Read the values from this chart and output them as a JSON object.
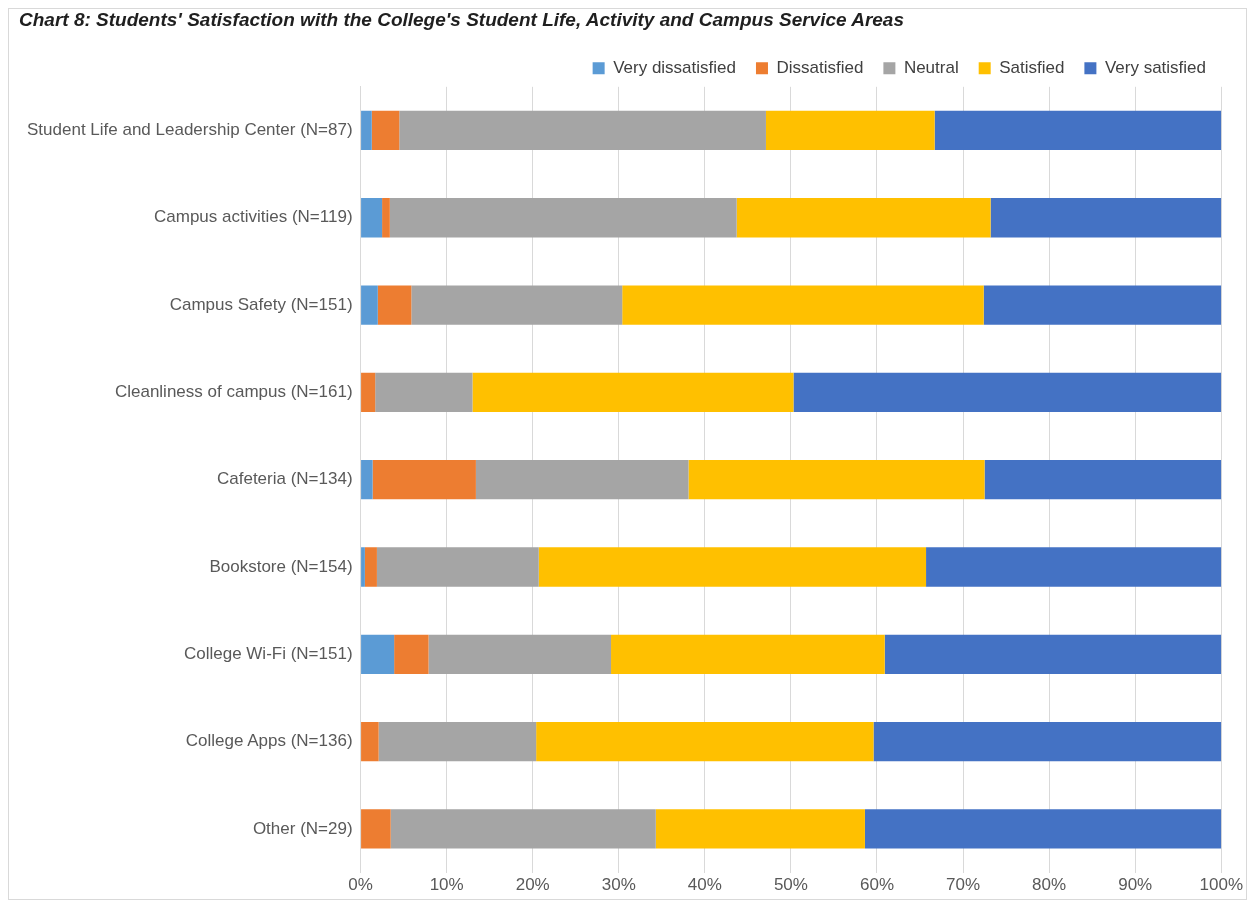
{
  "chart_data": {
    "type": "bar",
    "orientation": "horizontal",
    "stacked": true,
    "title": "Chart 8: Students' Satisfaction with the College's Student Life, Activity and Campus Service Areas",
    "categories": [
      "Student Life and Leadership Center (N=87)",
      "Campus activities (N=119)",
      "Campus Safety (N=151)",
      "Cleanliness of campus (N=161)",
      "Cafeteria (N=134)",
      "Bookstore (N=154)",
      "College Wi-Fi (N=151)",
      "College Apps (N=136)",
      "Other (N=29)"
    ],
    "series": [
      {
        "name": "Very dissatisfied",
        "color": "#5b9bd5",
        "values": [
          1.3,
          2.5,
          2.0,
          0,
          1.4,
          0.5,
          3.9,
          0,
          0
        ]
      },
      {
        "name": "Dissatisfied",
        "color": "#ed7d31",
        "values": [
          3.2,
          0.9,
          3.9,
          1.7,
          12.0,
          1.4,
          4.0,
          2.1,
          3.5
        ]
      },
      {
        "name": "Neutral",
        "color": "#a5a5a5",
        "values": [
          42.6,
          40.3,
          24.5,
          11.3,
          24.7,
          18.8,
          21.2,
          18.3,
          30.8
        ]
      },
      {
        "name": "Satisfied",
        "color": "#ffc000",
        "values": [
          19.6,
          29.5,
          42.0,
          37.3,
          34.4,
          45.0,
          31.8,
          39.2,
          24.3
        ]
      },
      {
        "name": "Very satisfied",
        "color": "#4472c4",
        "values": [
          33.3,
          26.8,
          27.6,
          49.7,
          27.5,
          34.3,
          39.1,
          40.4,
          41.4
        ]
      }
    ],
    "xlim": [
      0,
      100
    ],
    "xticks": [
      {
        "value": 0,
        "label": "0%"
      },
      {
        "value": 10,
        "label": "10%"
      },
      {
        "value": 20,
        "label": "20%"
      },
      {
        "value": 30,
        "label": "30%"
      },
      {
        "value": 40,
        "label": "40%"
      },
      {
        "value": 50,
        "label": "50%"
      },
      {
        "value": 60,
        "label": "60%"
      },
      {
        "value": 70,
        "label": "70%"
      },
      {
        "value": 80,
        "label": "80%"
      },
      {
        "value": 90,
        "label": "90%"
      },
      {
        "value": 100,
        "label": "100%"
      }
    ],
    "grid": "x",
    "legend": "top right"
  }
}
